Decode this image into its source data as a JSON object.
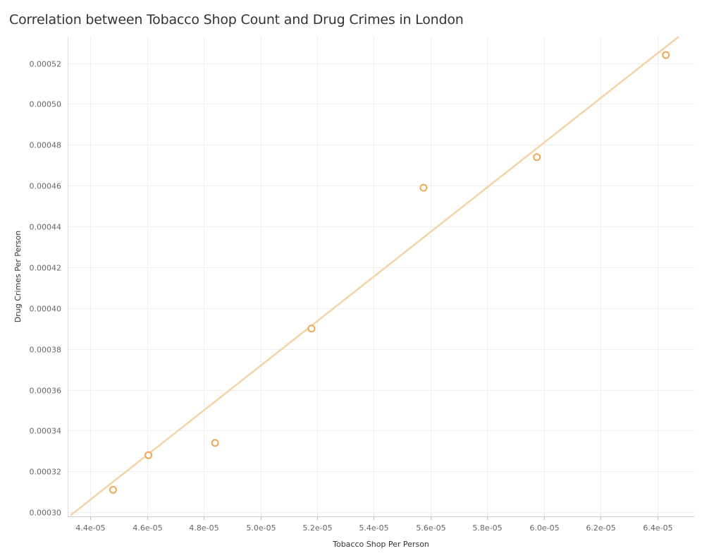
{
  "chart_data": {
    "type": "scatter",
    "title": "Correlation between Tobacco Shop Count and Drug Crimes in London",
    "xlabel": "Tobacco Shop Per Person",
    "ylabel": "Drug Crimes Per Person",
    "xlim": [
      4.32e-05,
      6.53e-05
    ],
    "ylim": [
      0.000298,
      0.000533
    ],
    "x_ticks": [
      4.4e-05,
      4.6e-05,
      4.8e-05,
      5e-05,
      5.2e-05,
      5.4e-05,
      5.6e-05,
      5.8e-05,
      6e-05,
      6.2e-05,
      6.4e-05
    ],
    "x_tick_labels": [
      "4.4e-05",
      "4.6e-05",
      "4.8e-05",
      "5.0e-05",
      "5.2e-05",
      "5.4e-05",
      "5.6e-05",
      "5.8e-05",
      "6.0e-05",
      "6.2e-05",
      "6.4e-05"
    ],
    "y_ticks": [
      0.0003,
      0.00032,
      0.00034,
      0.00036,
      0.00038,
      0.0004,
      0.00042,
      0.00044,
      0.00046,
      0.00048,
      0.0005,
      0.00052
    ],
    "y_tick_labels": [
      "0.00030",
      "0.00032",
      "0.00034",
      "0.00036",
      "0.00038",
      "0.00040",
      "0.00042",
      "0.00044",
      "0.00046",
      "0.00048",
      "0.00050",
      "0.00052"
    ],
    "points": [
      {
        "x": 4.48e-05,
        "y": 0.000311
      },
      {
        "x": 4.605e-05,
        "y": 0.000328
      },
      {
        "x": 4.84e-05,
        "y": 0.000334
      },
      {
        "x": 5.18e-05,
        "y": 0.00039
      },
      {
        "x": 5.575e-05,
        "y": 0.000459
      },
      {
        "x": 5.975e-05,
        "y": 0.000474
      },
      {
        "x": 6.43e-05,
        "y": 0.000524
      }
    ],
    "trend_line": {
      "start": {
        "x": 4.33e-05,
        "y": 0.0002985
      },
      "end": {
        "x": 6.475e-05,
        "y": 0.000533
      }
    },
    "grid": true,
    "colors": {
      "point": "#f2a654",
      "trend": "#f6d2a4",
      "grid": "#eeeeee"
    }
  }
}
